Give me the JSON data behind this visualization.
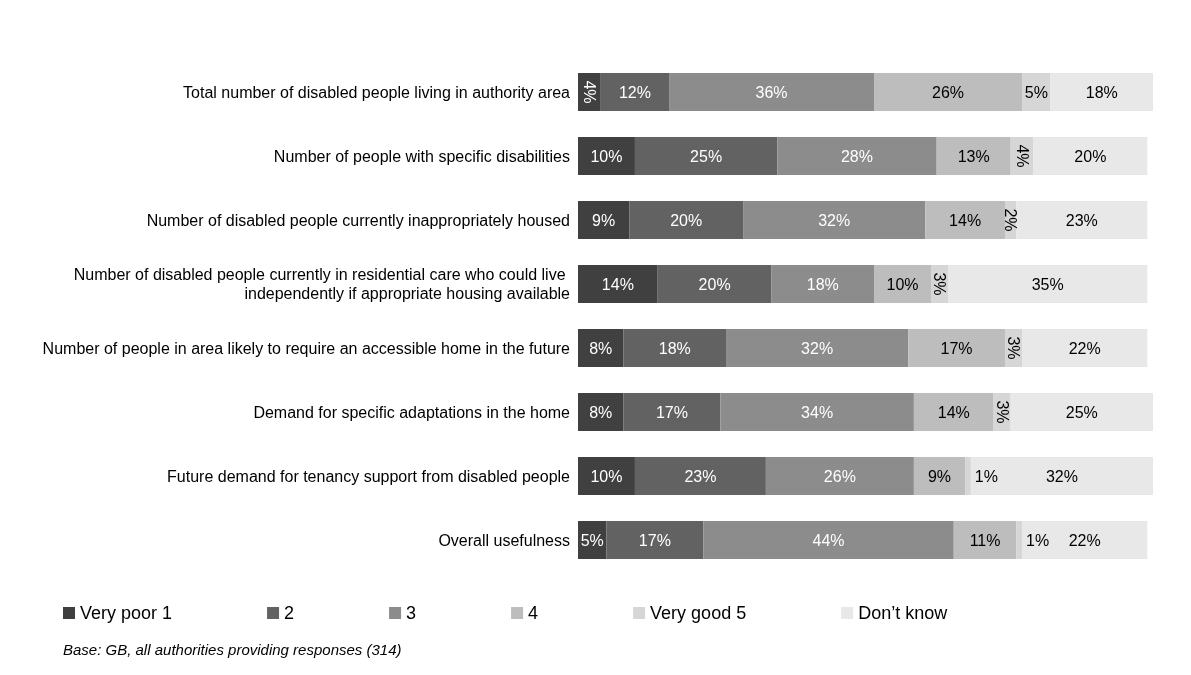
{
  "chart_data": {
    "type": "bar",
    "orientation": "horizontal",
    "stacked": true,
    "legend": "bottom",
    "grid": false,
    "categories": [
      "Total number of disabled people living in authority area",
      "Number of people with specific disabilities",
      "Number of disabled people currently inappropriately housed",
      "Number of disabled people currently in residential care who could live independently if appropriate housing available",
      "Number of people in area likely to require an accessible home in the future",
      "Demand for specific adaptations in the home",
      "Future demand for tenancy support from disabled people",
      "Overall usefulness"
    ],
    "series": [
      {
        "name": "Very poor 1",
        "color": "#404040",
        "values": [
          4,
          10,
          9,
          14,
          8,
          8,
          10,
          5
        ],
        "value_labels": [
          "4%",
          "10%",
          "9%",
          "14%",
          "8%",
          "8%",
          "10%",
          "5%"
        ]
      },
      {
        "name": "2",
        "color": "#626262",
        "values": [
          12,
          25,
          20,
          20,
          18,
          17,
          23,
          17
        ],
        "value_labels": [
          "12%",
          "25%",
          "20%",
          "20%",
          "18%",
          "17%",
          "23%",
          "17%"
        ]
      },
      {
        "name": "3",
        "color": "#8c8c8c",
        "values": [
          36,
          28,
          32,
          18,
          32,
          34,
          26,
          44
        ],
        "value_labels": [
          "36%",
          "28%",
          "32%",
          "18%",
          "32%",
          "34%",
          "26%",
          "44%"
        ]
      },
      {
        "name": "4",
        "color": "#bdbdbd",
        "values": [
          26,
          13,
          14,
          10,
          17,
          14,
          9,
          11
        ],
        "value_labels": [
          "26%",
          "13%",
          "14%",
          "10%",
          "17%",
          "14%",
          "9%",
          "11%"
        ]
      },
      {
        "name": "Very good 5",
        "color": "#d6d6d6",
        "values": [
          5,
          4,
          2,
          3,
          3,
          3,
          1,
          1
        ],
        "value_labels": [
          "5%",
          "4%",
          "2%",
          "3%",
          "3%",
          "3%",
          "1%",
          "1%"
        ]
      },
      {
        "name": "Don’t know",
        "color": "#e8e8e8",
        "values": [
          18,
          20,
          23,
          35,
          22,
          25,
          32,
          22
        ],
        "value_labels": [
          "18%",
          "20%",
          "23%",
          "35%",
          "22%",
          "25%",
          "32%",
          "22%"
        ]
      }
    ],
    "annotations": [
      "Base: GB, all authorities providing responses (314)"
    ]
  }
}
